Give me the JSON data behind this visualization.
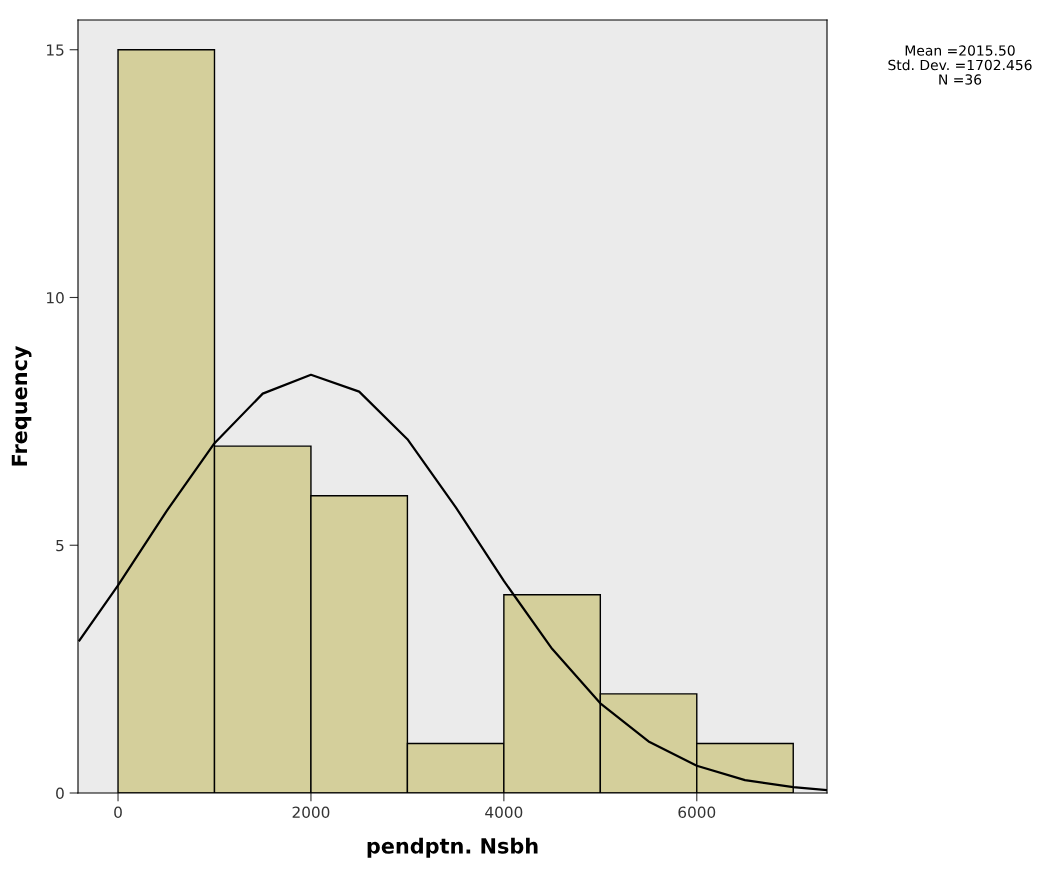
{
  "chart_data": {
    "type": "histogram",
    "xlabel": "pendptn. Nsbh",
    "ylabel": "Frequency",
    "bins": [
      0,
      1000,
      2000,
      3000,
      4000,
      5000,
      6000,
      7000
    ],
    "values": [
      15,
      7,
      6,
      1,
      4,
      2,
      1
    ],
    "color": "#d4cf9b",
    "series": [
      {
        "type": "line",
        "color": "#000000",
        "x": [
          -400,
          0,
          500,
          1000,
          1500,
          2000,
          2500,
          3000,
          3500,
          4000,
          4500,
          5000,
          5500,
          6000,
          6500,
          7000,
          7350
        ],
        "values": [
          3.08,
          4.19,
          5.68,
          7.06,
          8.06,
          8.44,
          8.1,
          7.14,
          5.77,
          4.28,
          2.91,
          1.81,
          1.04,
          0.55,
          0.26,
          0.12,
          0.06
        ]
      }
    ],
    "xlim": [
      -415,
      7350
    ],
    "ylim": [
      0,
      15.6
    ],
    "xticks": [
      0,
      2000,
      {
        "value": 4000,
        "label": "4000"
      },
      6000
    ],
    "yticks": [
      0,
      5,
      10,
      15
    ],
    "grid": false,
    "annotations": [
      "Mean =2015.50\nStd. Dev. =1702.456\nN =36"
    ]
  }
}
